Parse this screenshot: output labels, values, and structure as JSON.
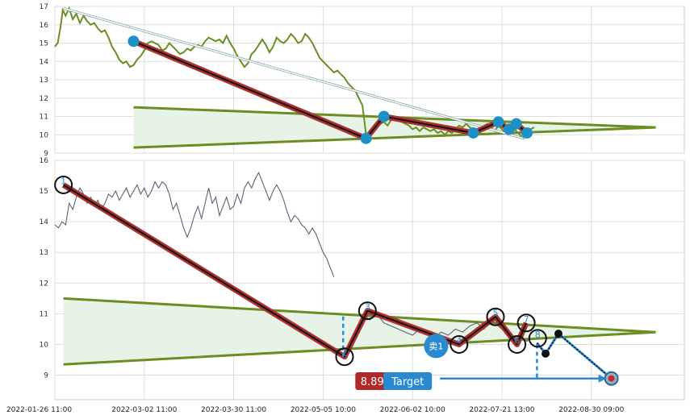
{
  "chart_data": [
    {
      "type": "line",
      "panel": "top",
      "ylim": [
        9,
        17
      ],
      "yticks": [
        "9",
        "10",
        "11",
        "12",
        "13",
        "14",
        "15",
        "16",
        "17"
      ],
      "grid": true,
      "colors": {
        "price": "#6b8e23",
        "trend": "#b03030",
        "wedge_line": "#6b8e23",
        "wedge_fill": "#e3f2e3",
        "marker": "#1e90c8",
        "arrow": "#8aa8a8"
      },
      "series": [
        {
          "values": [
            [
              0,
              14.8
            ],
            [
              0.4,
              15
            ],
            [
              0.8,
              15.9
            ],
            [
              1.1,
              16.8
            ],
            [
              1.5,
              16.5
            ],
            [
              2,
              16.9
            ],
            [
              2.5,
              16.3
            ],
            [
              3,
              16.6
            ],
            [
              3.5,
              16.1
            ],
            [
              4,
              16.5
            ],
            [
              4.5,
              16.2
            ],
            [
              5,
              16.0
            ],
            [
              5.5,
              16.1
            ],
            [
              6,
              15.8
            ],
            [
              6.5,
              15.6
            ],
            [
              7,
              15.7
            ],
            [
              7.5,
              15.3
            ],
            [
              8,
              14.8
            ],
            [
              8.5,
              14.5
            ],
            [
              9,
              14.1
            ],
            [
              9.5,
              13.9
            ],
            [
              10,
              14.0
            ],
            [
              10.5,
              13.7
            ],
            [
              11,
              13.8
            ],
            [
              11.5,
              14.1
            ],
            [
              12,
              14.3
            ],
            [
              12.5,
              14.6
            ],
            [
              13,
              15.0
            ],
            [
              13.5,
              15.1
            ],
            [
              14,
              15.0
            ],
            [
              14.5,
              14.9
            ],
            [
              15,
              14.6
            ],
            [
              15.5,
              14.7
            ],
            [
              16,
              15.0
            ],
            [
              16.5,
              14.8
            ],
            [
              17,
              14.6
            ],
            [
              17.5,
              14.4
            ],
            [
              18,
              14.5
            ],
            [
              18.5,
              14.7
            ],
            [
              19,
              14.6
            ],
            [
              19.5,
              14.8
            ],
            [
              20,
              14.9
            ],
            [
              20.5,
              14.8
            ],
            [
              21,
              15.1
            ],
            [
              21.5,
              15.3
            ],
            [
              22,
              15.2
            ],
            [
              22.5,
              15.1
            ],
            [
              23,
              15.2
            ],
            [
              23.5,
              15.0
            ],
            [
              24,
              15.4
            ],
            [
              24.5,
              15.0
            ],
            [
              25,
              14.7
            ],
            [
              25.5,
              14.3
            ],
            [
              26,
              14.0
            ],
            [
              26.5,
              13.7
            ],
            [
              27,
              13.9
            ],
            [
              27.5,
              14.4
            ],
            [
              28,
              14.6
            ],
            [
              28.5,
              14.9
            ],
            [
              29,
              15.2
            ],
            [
              29.5,
              14.9
            ],
            [
              30,
              14.5
            ],
            [
              30.5,
              14.8
            ],
            [
              31,
              15.3
            ],
            [
              31.5,
              15.1
            ],
            [
              32,
              15.0
            ],
            [
              32.5,
              15.2
            ],
            [
              33,
              15.5
            ],
            [
              33.5,
              15.3
            ],
            [
              34,
              15.0
            ],
            [
              34.5,
              15.1
            ],
            [
              35,
              15.5
            ],
            [
              35.5,
              15.3
            ],
            [
              36,
              15.0
            ],
            [
              36.5,
              14.6
            ],
            [
              37,
              14.2
            ],
            [
              37.5,
              14.0
            ],
            [
              38,
              13.8
            ],
            [
              38.5,
              13.6
            ],
            [
              39,
              13.4
            ],
            [
              39.5,
              13.5
            ],
            [
              40,
              13.3
            ],
            [
              40.5,
              13.1
            ],
            [
              41,
              12.8
            ],
            [
              41.5,
              12.6
            ],
            [
              42,
              12.4
            ],
            [
              42.5,
              12.0
            ],
            [
              43,
              11.6
            ],
            [
              43.5,
              10.0
            ],
            [
              44,
              9.8
            ],
            [
              44.5,
              10.2
            ],
            [
              45,
              10.4
            ],
            [
              45.5,
              10.6
            ],
            [
              46,
              10.7
            ],
            [
              46.5,
              10.5
            ],
            [
              47,
              10.8
            ],
            [
              47.5,
              11.0
            ],
            [
              48,
              10.9
            ],
            [
              48.5,
              10.7
            ],
            [
              49,
              10.6
            ],
            [
              49.5,
              10.5
            ],
            [
              50,
              10.3
            ],
            [
              50.5,
              10.4
            ],
            [
              51,
              10.2
            ],
            [
              51.5,
              10.4
            ],
            [
              52,
              10.3
            ],
            [
              52.5,
              10.2
            ],
            [
              53,
              10.3
            ],
            [
              53.5,
              10.1
            ],
            [
              54,
              10.2
            ],
            [
              54.5,
              10.0
            ],
            [
              55,
              10.2
            ],
            [
              55.5,
              10.1
            ],
            [
              56,
              10.3
            ],
            [
              56.5,
              10.5
            ],
            [
              57,
              10.4
            ],
            [
              57.5,
              10.6
            ],
            [
              58,
              10.4
            ],
            [
              58.5,
              10.2
            ],
            [
              59,
              10.1
            ],
            [
              59.5,
              10.3
            ],
            [
              60,
              10.5
            ],
            [
              60.5,
              10.6
            ],
            [
              61,
              10.4
            ],
            [
              61.5,
              10.2
            ],
            [
              62,
              10.5
            ],
            [
              62.5,
              10.3
            ],
            [
              63,
              10.1
            ],
            [
              63.5,
              10.4
            ],
            [
              64,
              10.5
            ],
            [
              64.5,
              10.2
            ],
            [
              65,
              10.0
            ],
            [
              65.5,
              9.8
            ],
            [
              66,
              10.1
            ],
            [
              66.5,
              10.3
            ],
            [
              67,
              10.4
            ]
          ]
        }
      ],
      "trend_points": [
        [
          11,
          15.1
        ],
        [
          43.5,
          9.8
        ],
        [
          46,
          11.0
        ],
        [
          58.5,
          10.1
        ],
        [
          62,
          10.7
        ],
        [
          63.5,
          10.3
        ],
        [
          64.5,
          10.6
        ],
        [
          66,
          10.1
        ]
      ],
      "wedge": {
        "upper": [
          [
            11,
            11.5
          ],
          [
            84,
            10.4
          ]
        ],
        "lower": [
          [
            11,
            9.3
          ],
          [
            84,
            10.4
          ]
        ]
      },
      "arrow": {
        "from": [
          1.2,
          16.9
        ],
        "to": [
          65.5,
          9.8
        ]
      }
    },
    {
      "type": "line",
      "panel": "bottom",
      "ylim": [
        8.2,
        16
      ],
      "yticks": [
        "9",
        "10",
        "11",
        "12",
        "13",
        "14",
        "15",
        "16"
      ],
      "grid": true,
      "x_tick_labels": [
        "2022-01-26 11:00",
        "2022-03-02 11:00",
        "2022-03-30 11:00",
        "2022-05-05 10:00",
        "2022-06-02 10:00",
        "2022-07-21 13:00",
        "2022-08-30 09:00"
      ],
      "colors": {
        "price": "#5a6478",
        "trend": "#b03030",
        "wedge_line": "#6b8e23",
        "wedge_fill": "#e3f2e3",
        "projection": "#2a8ad0",
        "badge_red": "#b02a2a",
        "badge_blue": "#2a8ad0",
        "target_fill": "#cc2a2a"
      },
      "series": [
        {
          "values": [
            [
              0,
              13.9
            ],
            [
              0.5,
              13.8
            ],
            [
              1,
              14.0
            ],
            [
              1.5,
              13.9
            ],
            [
              2,
              14.6
            ],
            [
              2.5,
              14.4
            ],
            [
              3,
              14.8
            ],
            [
              3.5,
              15.1
            ],
            [
              4,
              14.9
            ],
            [
              4.5,
              14.6
            ],
            [
              5,
              14.8
            ],
            [
              5.5,
              14.5
            ],
            [
              6,
              14.7
            ],
            [
              6.5,
              14.4
            ],
            [
              7,
              14.6
            ],
            [
              7.5,
              14.9
            ],
            [
              8,
              14.8
            ],
            [
              8.5,
              15.0
            ],
            [
              9,
              14.7
            ],
            [
              9.5,
              14.9
            ],
            [
              10,
              15.1
            ],
            [
              10.5,
              14.8
            ],
            [
              11,
              15.0
            ],
            [
              11.5,
              15.2
            ],
            [
              12,
              14.9
            ],
            [
              12.5,
              15.1
            ],
            [
              13,
              14.8
            ],
            [
              13.5,
              15.0
            ],
            [
              14,
              15.3
            ],
            [
              14.5,
              15.1
            ],
            [
              15,
              15.3
            ],
            [
              15.5,
              15.2
            ],
            [
              16,
              14.9
            ],
            [
              16.5,
              14.4
            ],
            [
              17,
              14.6
            ],
            [
              17.5,
              14.2
            ],
            [
              18,
              13.8
            ],
            [
              18.5,
              13.5
            ],
            [
              19,
              13.8
            ],
            [
              19.5,
              14.2
            ],
            [
              20,
              14.5
            ],
            [
              20.5,
              14.1
            ],
            [
              21,
              14.6
            ],
            [
              21.5,
              15.1
            ],
            [
              22,
              14.6
            ],
            [
              22.5,
              14.8
            ],
            [
              23,
              14.2
            ],
            [
              23.5,
              14.5
            ],
            [
              24,
              14.8
            ],
            [
              24.5,
              14.4
            ],
            [
              25,
              14.5
            ],
            [
              25.5,
              14.9
            ],
            [
              26,
              14.6
            ],
            [
              26.5,
              15.1
            ],
            [
              27,
              15.3
            ],
            [
              27.5,
              15.1
            ],
            [
              28,
              15.4
            ],
            [
              28.5,
              15.6
            ],
            [
              29,
              15.3
            ],
            [
              29.5,
              15.0
            ],
            [
              30,
              14.7
            ],
            [
              30.5,
              15.0
            ],
            [
              31,
              15.2
            ],
            [
              31.5,
              15.0
            ],
            [
              32,
              14.7
            ],
            [
              32.5,
              14.3
            ],
            [
              33,
              14.0
            ],
            [
              33.5,
              14.2
            ],
            [
              34,
              14.1
            ],
            [
              34.5,
              13.9
            ],
            [
              35,
              13.8
            ],
            [
              35.5,
              13.6
            ],
            [
              36,
              13.8
            ],
            [
              36.5,
              13.6
            ],
            [
              37,
              13.3
            ],
            [
              37.5,
              13.0
            ],
            [
              38,
              12.8
            ],
            [
              38.5,
              12.5
            ],
            [
              39,
              12.2
            ],
            [
              43,
              11.0
            ],
            [
              44,
              10.8
            ],
            [
              45,
              11.0
            ],
            [
              46,
              10.7
            ],
            [
              47,
              10.6
            ],
            [
              48,
              10.5
            ],
            [
              49,
              10.4
            ],
            [
              50,
              10.3
            ],
            [
              51,
              10.5
            ],
            [
              52,
              10.4
            ],
            [
              53,
              10.2
            ],
            [
              54,
              10.4
            ],
            [
              55,
              10.3
            ],
            [
              56,
              10.5
            ],
            [
              57,
              10.4
            ],
            [
              58,
              10.6
            ],
            [
              59,
              10.7
            ],
            [
              60,
              10.5
            ],
            [
              61,
              10.8
            ],
            [
              62,
              10.6
            ],
            [
              63,
              10.4
            ],
            [
              64,
              10.2
            ],
            [
              65,
              10.3
            ],
            [
              66,
              10.1
            ],
            [
              66.5,
              10.2
            ]
          ]
        }
      ],
      "wave_points": [
        {
          "label": "1",
          "x": 1.2,
          "y": 15.2
        },
        {
          "label": "2",
          "x": 40.5,
          "y": 9.6
        },
        {
          "label": "3",
          "x": 43.7,
          "y": 11.1
        },
        {
          "label": "4",
          "x": 56.5,
          "y": 10.0
        },
        {
          "label": "5",
          "x": 61.6,
          "y": 10.9
        },
        {
          "label": "6",
          "x": 64.6,
          "y": 10.0
        },
        {
          "label": "7",
          "x": 65.9,
          "y": 10.7
        },
        {
          "label": "8",
          "x": 67.5,
          "y": 10.2
        }
      ],
      "wedge": {
        "upper": [
          [
            1.2,
            11.5
          ],
          [
            84,
            10.4
          ]
        ],
        "lower": [
          [
            1.2,
            9.35
          ],
          [
            84,
            10.4
          ]
        ]
      },
      "stop_value": "8.89",
      "stop_badge_x": 42,
      "sell_label": "卖1",
      "sell_x": 53.3,
      "sell_y": 9.95,
      "target_label": "Target",
      "target_badge_x": 50,
      "target_value": 8.89,
      "target_x": 77.8,
      "projection": [
        [
          67.4,
          10.05
        ],
        [
          68.6,
          9.7
        ],
        [
          70.4,
          10.35
        ],
        [
          77.8,
          8.89
        ]
      ]
    }
  ]
}
